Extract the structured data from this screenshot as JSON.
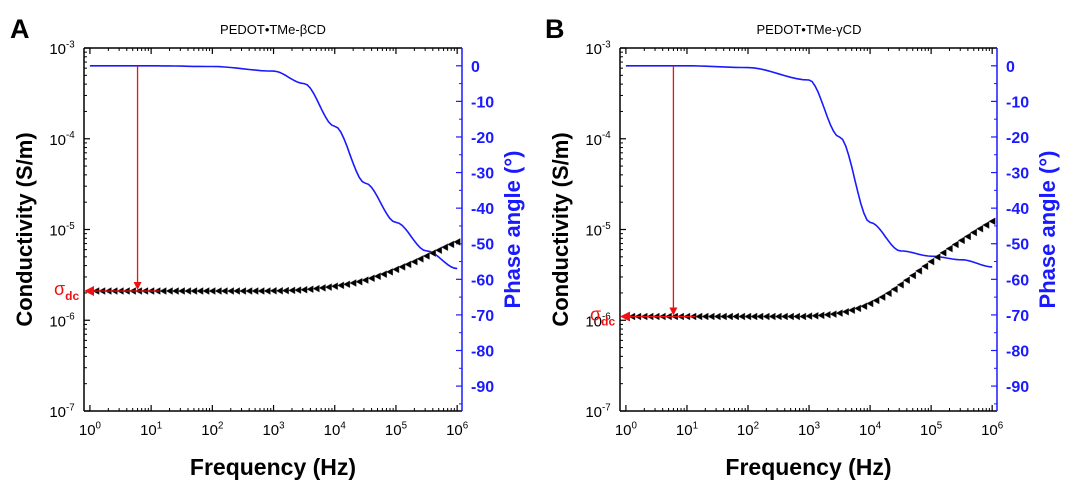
{
  "chart_data": [
    {
      "panel_label": "A",
      "title": "PEDOT•TMe-βCD",
      "type": "scatter",
      "xlabel": "Frequency (Hz)",
      "ylabel_left": "Conductivity (S/m)",
      "ylabel_right": "Phase angle (°)",
      "x_scale": "log",
      "y_left_scale": "log",
      "xlim": [
        0.8,
        1200000
      ],
      "ylim_left": [
        1e-07,
        0.001
      ],
      "ylim_right": [
        -97,
        5
      ],
      "x_ticks": [
        {
          "label": "10",
          "exp": "0"
        },
        {
          "label": "10",
          "exp": "1"
        },
        {
          "label": "10",
          "exp": "2"
        },
        {
          "label": "10",
          "exp": "3"
        },
        {
          "label": "10",
          "exp": "4"
        },
        {
          "label": "10",
          "exp": "5"
        },
        {
          "label": "10",
          "exp": "6"
        }
      ],
      "y_left_ticks": [
        {
          "label": "10",
          "exp": "-7"
        },
        {
          "label": "10",
          "exp": "-6"
        },
        {
          "label": "10",
          "exp": "-5"
        },
        {
          "label": "10",
          "exp": "-4"
        },
        {
          "label": "10",
          "exp": "-3"
        }
      ],
      "y_right_ticks": [
        "0",
        "-10",
        "-20",
        "-30",
        "-40",
        "-50",
        "-60",
        "-70",
        "-80",
        "-90"
      ],
      "dc_annotation": {
        "text": "σ",
        "subscript": "dc",
        "value": 2.1e-06,
        "arrow_from_x": 6
      },
      "grid": false,
      "series": [
        {
          "axis": "left",
          "style": "black left-pointing triangles",
          "x": [
            1,
            1.26,
            1.58,
            2,
            2.51,
            3.16,
            3.98,
            5.01,
            6.31,
            7.94,
            10,
            12.6,
            15.8,
            20,
            25.1,
            31.6,
            39.8,
            50.1,
            63.1,
            79.4,
            100,
            126,
            158,
            200,
            251,
            316,
            398,
            501,
            631,
            794,
            1000,
            1260,
            1580,
            2000,
            2510,
            3160,
            3980,
            5010,
            6310,
            7940,
            10000,
            12600,
            15800,
            20000,
            25100,
            31600,
            39800,
            50100,
            63100,
            79400,
            100000,
            126000,
            158000,
            200000,
            251000,
            316000,
            398000,
            501000,
            631000,
            794000,
            1000000
          ],
          "values": [
            2.1e-06,
            2.1e-06,
            2.1e-06,
            2.1e-06,
            2.1e-06,
            2.1e-06,
            2.1e-06,
            2.1e-06,
            2.1e-06,
            2.1e-06,
            2.1e-06,
            2.1e-06,
            2.1e-06,
            2.1e-06,
            2.1e-06,
            2.1e-06,
            2.1e-06,
            2.1e-06,
            2.1e-06,
            2.1e-06,
            2.1e-06,
            2.1e-06,
            2.1e-06,
            2.1e-06,
            2.1e-06,
            2.1e-06,
            2.1e-06,
            2.1e-06,
            2.1e-06,
            2.1e-06,
            2.11e-06,
            2.11e-06,
            2.12e-06,
            2.13e-06,
            2.15e-06,
            2.17e-06,
            2.2e-06,
            2.23e-06,
            2.27e-06,
            2.32e-06,
            2.37e-06,
            2.42e-06,
            2.49e-06,
            2.57e-06,
            2.66e-06,
            2.77e-06,
            2.9e-06,
            3.05e-06,
            3.22e-06,
            3.41e-06,
            3.63e-06,
            3.87e-06,
            4.13e-06,
            4.42e-06,
            4.74e-06,
            5.1e-06,
            5.5e-06,
            5.92e-06,
            6.38e-06,
            6.85e-06,
            7.3e-06
          ]
        },
        {
          "axis": "right",
          "style": "blue line",
          "x": [
            1,
            10,
            100,
            1000,
            3160,
            10000,
            31600,
            100000,
            316000,
            1000000
          ],
          "values": [
            0,
            0,
            -0.2,
            -1.5,
            -5,
            -17,
            -33,
            -44,
            -52,
            -57
          ]
        }
      ]
    },
    {
      "panel_label": "B",
      "title": "PEDOT•TMe-γCD",
      "type": "scatter",
      "xlabel": "Frequency (Hz)",
      "ylabel_left": "Conductivity (S/m)",
      "ylabel_right": "Phase angle (°)",
      "x_scale": "log",
      "y_left_scale": "log",
      "xlim": [
        0.8,
        1200000
      ],
      "ylim_left": [
        1e-07,
        0.001
      ],
      "ylim_right": [
        -97,
        5
      ],
      "x_ticks": [
        {
          "label": "10",
          "exp": "0"
        },
        {
          "label": "10",
          "exp": "1"
        },
        {
          "label": "10",
          "exp": "2"
        },
        {
          "label": "10",
          "exp": "3"
        },
        {
          "label": "10",
          "exp": "4"
        },
        {
          "label": "10",
          "exp": "5"
        },
        {
          "label": "10",
          "exp": "6"
        }
      ],
      "y_left_ticks": [
        {
          "label": "10",
          "exp": "-7"
        },
        {
          "label": "10",
          "exp": "-6"
        },
        {
          "label": "10",
          "exp": "-5"
        },
        {
          "label": "10",
          "exp": "-4"
        },
        {
          "label": "10",
          "exp": "-3"
        }
      ],
      "y_right_ticks": [
        "0",
        "-10",
        "-20",
        "-30",
        "-40",
        "-50",
        "-60",
        "-70",
        "-80",
        "-90"
      ],
      "dc_annotation": {
        "text": "σ",
        "subscript": "dc",
        "value": 1.1e-06,
        "arrow_from_x": 6
      },
      "grid": false,
      "series": [
        {
          "axis": "left",
          "style": "black left-pointing triangles",
          "x": [
            1,
            1.26,
            1.58,
            2,
            2.51,
            3.16,
            3.98,
            5.01,
            6.31,
            7.94,
            10,
            12.6,
            15.8,
            20,
            25.1,
            31.6,
            39.8,
            50.1,
            63.1,
            79.4,
            100,
            126,
            158,
            200,
            251,
            316,
            398,
            501,
            631,
            794,
            1000,
            1260,
            1580,
            2000,
            2510,
            3160,
            3980,
            5010,
            6310,
            7940,
            10000,
            12600,
            15800,
            20000,
            25100,
            31600,
            39800,
            50100,
            63100,
            79400,
            100000,
            126000,
            158000,
            200000,
            251000,
            316000,
            398000,
            501000,
            631000,
            794000,
            1000000
          ],
          "values": [
            1.1e-06,
            1.1e-06,
            1.1e-06,
            1.1e-06,
            1.1e-06,
            1.1e-06,
            1.1e-06,
            1.1e-06,
            1.1e-06,
            1.1e-06,
            1.1e-06,
            1.1e-06,
            1.1e-06,
            1.1e-06,
            1.1e-06,
            1.1e-06,
            1.1e-06,
            1.1e-06,
            1.1e-06,
            1.1e-06,
            1.1e-06,
            1.1e-06,
            1.1e-06,
            1.1e-06,
            1.1e-06,
            1.1e-06,
            1.1e-06,
            1.1e-06,
            1.1e-06,
            1.1e-06,
            1.11e-06,
            1.12e-06,
            1.13e-06,
            1.15e-06,
            1.17e-06,
            1.2e-06,
            1.24e-06,
            1.29e-06,
            1.35e-06,
            1.43e-06,
            1.53e-06,
            1.65e-06,
            1.8e-06,
            1.98e-06,
            2.2e-06,
            2.46e-06,
            2.76e-06,
            3.11e-06,
            3.5e-06,
            3.94e-06,
            4.43e-06,
            4.96e-06,
            5.54e-06,
            6.16e-06,
            6.84e-06,
            7.58e-06,
            8.38e-06,
            9.26e-06,
            1.02e-05,
            1.12e-05,
            1.23e-05
          ]
        },
        {
          "axis": "right",
          "style": "blue line",
          "x": [
            1,
            10,
            100,
            1000,
            3160,
            10000,
            31600,
            100000,
            316000,
            1000000
          ],
          "values": [
            0,
            0,
            -0.5,
            -4,
            -20,
            -44,
            -52,
            -53.5,
            -54.5,
            -56.5
          ]
        }
      ]
    }
  ]
}
